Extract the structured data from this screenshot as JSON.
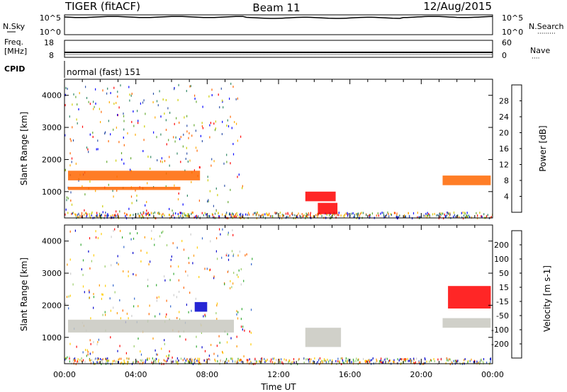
{
  "header": {
    "station": "TIGER (fitACF)",
    "beam": "Beam 11",
    "date": "12/Aug/2015"
  },
  "nsky_panel": {
    "left_label": "N.Sky",
    "left_ticks": [
      "10^5",
      "10^0"
    ],
    "right_label": "N.Search",
    "right_ticks": [
      "10^5",
      "10^0"
    ]
  },
  "freq_panel": {
    "left_label_1": "Freq.",
    "left_label_2": "[MHz]",
    "left_ticks": [
      "18",
      "8"
    ],
    "right_label": "Nave",
    "right_ticks": [
      "60",
      "0"
    ]
  },
  "cpid_panel": {
    "label": "CPID",
    "mode": "normal (fast) 151"
  },
  "chart_data": [
    {
      "type": "heatmap",
      "quantity": "Power",
      "ylabel": "Slant Range [km]",
      "yticks": [
        "4000",
        "3000",
        "2000",
        "1000"
      ],
      "ylim": [
        180,
        4500
      ],
      "xlim": [
        0,
        24
      ],
      "colorbar_label": "Power [dB]",
      "colorbar_ticks": [
        "28",
        "24",
        "20",
        "16",
        "12",
        "8",
        "4"
      ],
      "colorbar_colors": [
        "#ff0000",
        "#ff6600",
        "#ffaa00",
        "#cccc00",
        "#66aa33",
        "#338866",
        "#3355aa",
        "#0000ff"
      ],
      "regions": [
        {
          "t0": 0.2,
          "t1": 7.6,
          "r0": 1350,
          "r1": 1650,
          "color": "#ff6600"
        },
        {
          "t0": 0.2,
          "t1": 6.5,
          "r0": 1050,
          "r1": 1150,
          "color": "#ff6600"
        },
        {
          "t0": 13.5,
          "t1": 15.2,
          "r0": 700,
          "r1": 1000,
          "color": "#ff0000"
        },
        {
          "t0": 14.2,
          "t1": 15.3,
          "r0": 300,
          "r1": 650,
          "color": "#ff0000"
        },
        {
          "t0": 21.2,
          "t1": 23.9,
          "r0": 1200,
          "r1": 1500,
          "color": "#ff6600"
        }
      ]
    },
    {
      "type": "heatmap",
      "quantity": "Velocity",
      "ylabel": "Slant Range [km]",
      "yticks": [
        "4000",
        "3000",
        "2000",
        "1000"
      ],
      "ylim": [
        180,
        4500
      ],
      "xlim": [
        0,
        24
      ],
      "xlabel": "Time UT",
      "xticks": [
        "00:00",
        "04:00",
        "08:00",
        "12:00",
        "16:00",
        "20:00",
        "00:00"
      ],
      "colorbar_label": "Velocity [m s-1]",
      "colorbar_ticks": [
        "200",
        "100",
        "50",
        "15",
        "-15",
        "-50",
        "-100",
        "-200"
      ],
      "colorbar_colors": [
        "#0000cc",
        "#3366cc",
        "#33aa33",
        "#99cc66",
        "#cccccc",
        "#ffcc00",
        "#ff9900",
        "#ff6600",
        "#ff0000"
      ],
      "regions": [
        {
          "t0": 0.2,
          "t1": 9.5,
          "r0": 1150,
          "r1": 1550,
          "color": "#c8c8c0"
        },
        {
          "t0": 13.5,
          "t1": 15.5,
          "r0": 700,
          "r1": 1300,
          "color": "#c8c8c0"
        },
        {
          "t0": 7.3,
          "t1": 8.0,
          "r0": 1800,
          "r1": 2100,
          "color": "#0000cc"
        },
        {
          "t0": 21.5,
          "t1": 23.9,
          "r0": 1900,
          "r1": 2600,
          "color": "#ff0000"
        },
        {
          "t0": 21.2,
          "t1": 23.9,
          "r0": 1300,
          "r1": 1600,
          "color": "#c8c8c0"
        }
      ]
    }
  ]
}
